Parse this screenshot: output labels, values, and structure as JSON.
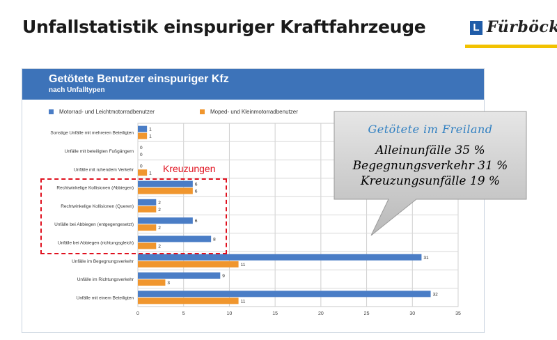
{
  "slide": {
    "title": "Unfallstatistik einspuriger Kraftfahrzeuge"
  },
  "logo": {
    "box_letter": "L",
    "text": "Fürböck"
  },
  "chart_data": {
    "type": "bar",
    "orientation": "horizontal",
    "title": "Getötete Benutzer einspuriger Kfz",
    "subtitle": "nach Unfalltypen",
    "categories": [
      "Sonstige Unfälle mit mehreren Beteiligten",
      "Unfälle mit beteiligten Fußgängern",
      "Unfälle mit ruhendem Verkehr",
      "Rechtwinkelige Kollisionen (Abbiegen)",
      "Rechtwinkelige Kollisionen (Queren)",
      "Unfälle bei Abbiegen (entgegengesetzt)",
      "Unfälle bei Abbiegen (richtungsgleich)",
      "Unfälle im Begegnungsverkehr",
      "Unfälle im Richtungsverkehr",
      "Unfälle mit einem Beteiligten"
    ],
    "series": [
      {
        "name": "Motorrad- und Leichtmotorradbenutzer",
        "color": "#4a7dc6",
        "values": [
          1,
          0,
          0,
          6,
          2,
          6,
          8,
          31,
          9,
          32
        ]
      },
      {
        "name": "Moped- und Kleinmotorradbenutzer",
        "color": "#f0962e",
        "values": [
          1,
          0,
          1,
          6,
          2,
          2,
          2,
          11,
          3,
          11
        ]
      }
    ],
    "xlim": [
      0,
      35
    ],
    "xticks": [
      "0",
      "5",
      "10",
      "15",
      "20",
      "25",
      "30",
      "35"
    ],
    "grid": true,
    "legend_position": "top"
  },
  "highlight": {
    "label": "Kreuzungen"
  },
  "callout": {
    "title": "Getötete im Freiland",
    "lines": [
      "Alleinunfälle 35 %",
      "Begegnungsverkehr 31 %",
      "Kreuzungsunfälle 19 %"
    ]
  }
}
